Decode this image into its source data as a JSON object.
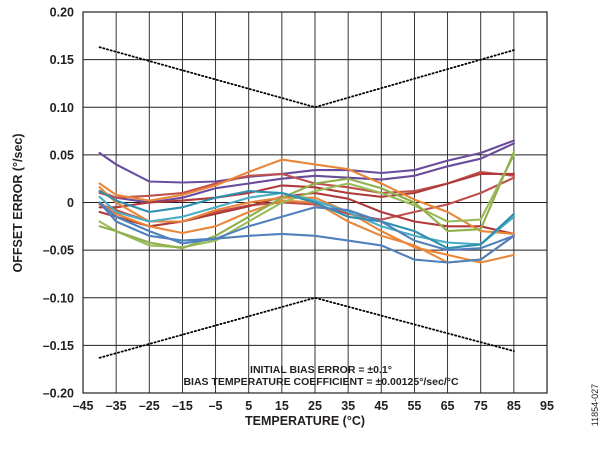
{
  "chart_data": {
    "type": "line",
    "title": "",
    "xlabel": "TEMPERATURE (°C)",
    "ylabel": "OFFSET ERROR (°/sec)",
    "xlim": [
      -45,
      95
    ],
    "ylim": [
      -0.2,
      0.2
    ],
    "grid": true,
    "x_ticks": [
      "–45",
      "–35",
      "–25",
      "–15",
      "–5",
      "5",
      "15",
      "25",
      "35",
      "45",
      "55",
      "65",
      "75",
      "85",
      "95"
    ],
    "y_ticks": [
      "–0.20",
      "–0.15",
      "–0.10",
      "–0.05",
      "0",
      "0.05",
      "0.10",
      "0.15",
      "0.20"
    ],
    "annotations": [
      "INITIAL BIAS ERROR = ±0.1°",
      "BIAS TEMPERATURE COEFFICIENT = ±0.00125°/sec/°C"
    ],
    "figure_id": "11854-027",
    "x": [
      -40,
      -35,
      -25,
      -15,
      -5,
      5,
      15,
      25,
      35,
      45,
      55,
      65,
      75,
      85
    ],
    "bound_lines": [
      {
        "style": "dotted",
        "color": "#000000",
        "x": [
          -40,
          25,
          85
        ],
        "y": [
          0.163,
          0.1,
          0.16
        ]
      },
      {
        "style": "dotted",
        "color": "#000000",
        "x": [
          -40,
          25,
          85
        ],
        "y": [
          -0.163,
          -0.1,
          -0.156
        ]
      }
    ],
    "series": [
      {
        "color": "#6a4c9c",
        "values": [
          0.052,
          0.04,
          0.022,
          0.021,
          0.022,
          0.027,
          0.03,
          0.034,
          0.034,
          0.031,
          0.034,
          0.044,
          0.052,
          0.065
        ]
      },
      {
        "color": "#6a4c9c",
        "values": [
          0.012,
          0.005,
          0.0,
          0.005,
          0.015,
          0.02,
          0.025,
          0.028,
          0.026,
          0.024,
          0.028,
          0.038,
          0.046,
          0.062
        ]
      },
      {
        "color": "#c0504d",
        "values": [
          0.01,
          0.005,
          0.007,
          0.01,
          0.02,
          0.028,
          0.03,
          0.02,
          0.016,
          0.01,
          0.012,
          0.02,
          0.032,
          0.028
        ]
      },
      {
        "color": "#b03a3a",
        "values": [
          -0.005,
          -0.005,
          0.0,
          0.002,
          0.005,
          0.01,
          0.018,
          0.016,
          0.01,
          0.006,
          0.01,
          0.02,
          0.03,
          0.03
        ]
      },
      {
        "color": "#c0504d",
        "values": [
          -0.002,
          -0.008,
          -0.02,
          -0.02,
          -0.01,
          -0.003,
          0.0,
          -0.002,
          -0.012,
          -0.018,
          -0.01,
          -0.002,
          0.01,
          0.026
        ]
      },
      {
        "color": "#b03a3a",
        "values": [
          -0.01,
          -0.015,
          -0.025,
          -0.02,
          -0.012,
          -0.004,
          0.006,
          0.01,
          0.004,
          -0.01,
          -0.02,
          -0.025,
          -0.025,
          -0.033
        ]
      },
      {
        "color": "#e8873a",
        "values": [
          0.02,
          0.008,
          0.002,
          0.008,
          0.018,
          0.032,
          0.045,
          0.04,
          0.035,
          0.02,
          0.003,
          -0.01,
          -0.03,
          -0.033
        ]
      },
      {
        "color": "#e8873a",
        "values": [
          0.016,
          0.0,
          -0.02,
          -0.02,
          -0.008,
          0.0,
          0.005,
          0.005,
          -0.01,
          -0.03,
          -0.047,
          -0.055,
          -0.063,
          -0.055
        ]
      },
      {
        "color": "#e8873a",
        "values": [
          0.0,
          -0.012,
          -0.025,
          -0.032,
          -0.025,
          -0.01,
          0.002,
          0.0,
          -0.02,
          -0.035,
          -0.045,
          -0.063,
          -0.06,
          -0.035
        ]
      },
      {
        "color": "#9bbb59",
        "values": [
          -0.02,
          -0.03,
          -0.045,
          -0.047,
          -0.04,
          -0.02,
          0.0,
          0.012,
          0.02,
          0.01,
          -0.003,
          -0.02,
          -0.018,
          0.05
        ]
      },
      {
        "color": "#8fb04d",
        "values": [
          -0.025,
          -0.03,
          -0.042,
          -0.048,
          -0.035,
          -0.015,
          0.005,
          0.02,
          0.025,
          0.015,
          0.0,
          -0.03,
          -0.028,
          0.053
        ]
      },
      {
        "color": "#4bacc6",
        "values": [
          0.006,
          -0.01,
          -0.02,
          -0.015,
          -0.005,
          0.005,
          0.01,
          0.002,
          -0.01,
          -0.025,
          -0.035,
          -0.042,
          -0.044,
          -0.015
        ]
      },
      {
        "color": "#2e8fae",
        "values": [
          0.012,
          0.002,
          -0.01,
          -0.005,
          0.005,
          0.012,
          0.01,
          0.0,
          -0.015,
          -0.02,
          -0.03,
          -0.048,
          -0.044,
          -0.012
        ]
      },
      {
        "color": "#4f81bd",
        "values": [
          0.0,
          -0.02,
          -0.035,
          -0.04,
          -0.038,
          -0.035,
          -0.033,
          -0.035,
          -0.04,
          -0.045,
          -0.06,
          -0.063,
          -0.06,
          -0.035
        ]
      },
      {
        "color": "#4f81bd",
        "values": [
          0.0,
          -0.015,
          -0.03,
          -0.043,
          -0.038,
          -0.025,
          -0.015,
          -0.005,
          -0.008,
          -0.02,
          -0.04,
          -0.05,
          -0.048,
          -0.035
        ]
      }
    ]
  }
}
